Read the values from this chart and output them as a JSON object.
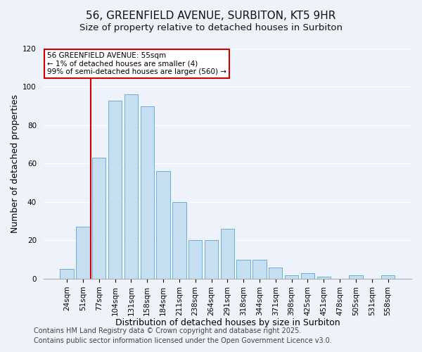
{
  "title": "56, GREENFIELD AVENUE, SURBITON, KT5 9HR",
  "subtitle": "Size of property relative to detached houses in Surbiton",
  "xlabel": "Distribution of detached houses by size in Surbiton",
  "ylabel": "Number of detached properties",
  "bar_labels": [
    "24sqm",
    "51sqm",
    "77sqm",
    "104sqm",
    "131sqm",
    "158sqm",
    "184sqm",
    "211sqm",
    "238sqm",
    "264sqm",
    "291sqm",
    "318sqm",
    "344sqm",
    "371sqm",
    "398sqm",
    "425sqm",
    "451sqm",
    "478sqm",
    "505sqm",
    "531sqm",
    "558sqm"
  ],
  "bar_values": [
    5,
    27,
    63,
    93,
    96,
    90,
    56,
    40,
    20,
    20,
    26,
    10,
    10,
    6,
    2,
    3,
    1,
    0,
    2,
    0,
    2
  ],
  "bar_color": "#c5dff0",
  "bar_edge_color": "#6aafd6",
  "vline_x": 1.5,
  "vline_color": "#cc0000",
  "ylim": [
    0,
    120
  ],
  "yticks": [
    0,
    20,
    40,
    60,
    80,
    100,
    120
  ],
  "annotation_title": "56 GREENFIELD AVENUE: 55sqm",
  "annotation_line1": "← 1% of detached houses are smaller (4)",
  "annotation_line2": "99% of semi-detached houses are larger (560) →",
  "annotation_box_color": "#ffffff",
  "annotation_box_edge": "#cc0000",
  "footer1": "Contains HM Land Registry data © Crown copyright and database right 2025.",
  "footer2": "Contains public sector information licensed under the Open Government Licence v3.0.",
  "background_color": "#eef2fb",
  "grid_color": "#ffffff",
  "title_fontsize": 11,
  "subtitle_fontsize": 9.5,
  "axis_label_fontsize": 9,
  "tick_fontsize": 7.5,
  "footer_fontsize": 7,
  "annotation_fontsize": 7.5
}
